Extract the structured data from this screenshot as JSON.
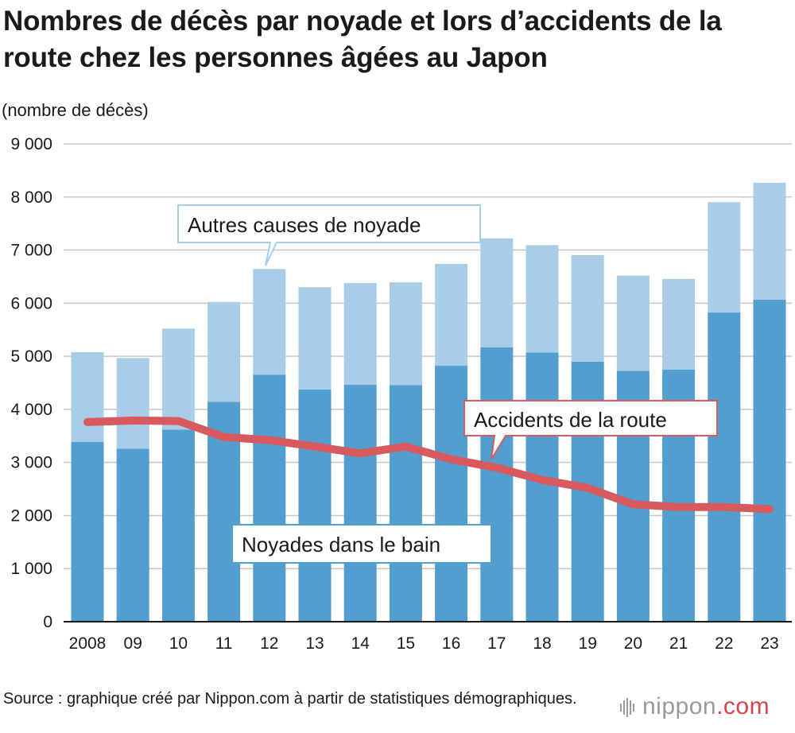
{
  "title": "Nombres de décès par noyade et lors d’accidents de la route chez les personnes âgées au Japon",
  "ylabel": "(nombre de décès)",
  "source": "Source : graphique créé par Nippon.com à partir de statistiques démographiques.",
  "brand": {
    "name": "nippon",
    "suffix": ".com"
  },
  "colors": {
    "bath": "#519ecf",
    "other": "#a9cde6",
    "road": "#d95a5e",
    "grid": "#c8c8c8",
    "callout_bath_border": "#519ecf",
    "callout_other_border": "#a9cde6",
    "callout_road_border": "#d95a5e"
  },
  "chart_data": {
    "type": "bar",
    "stacked": true,
    "categories": [
      "2008",
      "09",
      "10",
      "11",
      "12",
      "13",
      "14",
      "15",
      "16",
      "17",
      "18",
      "19",
      "20",
      "21",
      "22",
      "23"
    ],
    "ylim": [
      0,
      9000
    ],
    "yticks": [
      0,
      1000,
      2000,
      3000,
      4000,
      5000,
      6000,
      7000,
      8000,
      9000
    ],
    "ytick_labels": [
      "0",
      "1 000",
      "2 000",
      "3 000",
      "4 000",
      "5 000",
      "6 000",
      "7 000",
      "8 000",
      "9 000"
    ],
    "grid": true,
    "series": [
      {
        "name": "Noyades dans le bain",
        "type": "bar",
        "values": [
          3384,
          3260,
          3616,
          4140,
          4654,
          4374,
          4462,
          4458,
          4821,
          5166,
          5072,
          4900,
          4724,
          4750,
          5824,
          6068
        ]
      },
      {
        "name": "Autres causes de noyade",
        "type": "bar",
        "values": [
          1693,
          1707,
          1904,
          1883,
          1990,
          1926,
          1918,
          1934,
          1918,
          2054,
          2021,
          2004,
          1796,
          1705,
          2080,
          2200
        ]
      },
      {
        "name": "Accidents de la route",
        "type": "line",
        "values": [
          3760,
          3790,
          3780,
          3480,
          3420,
          3300,
          3170,
          3300,
          3060,
          2900,
          2670,
          2520,
          2210,
          2160,
          2160,
          2120
        ]
      }
    ]
  }
}
